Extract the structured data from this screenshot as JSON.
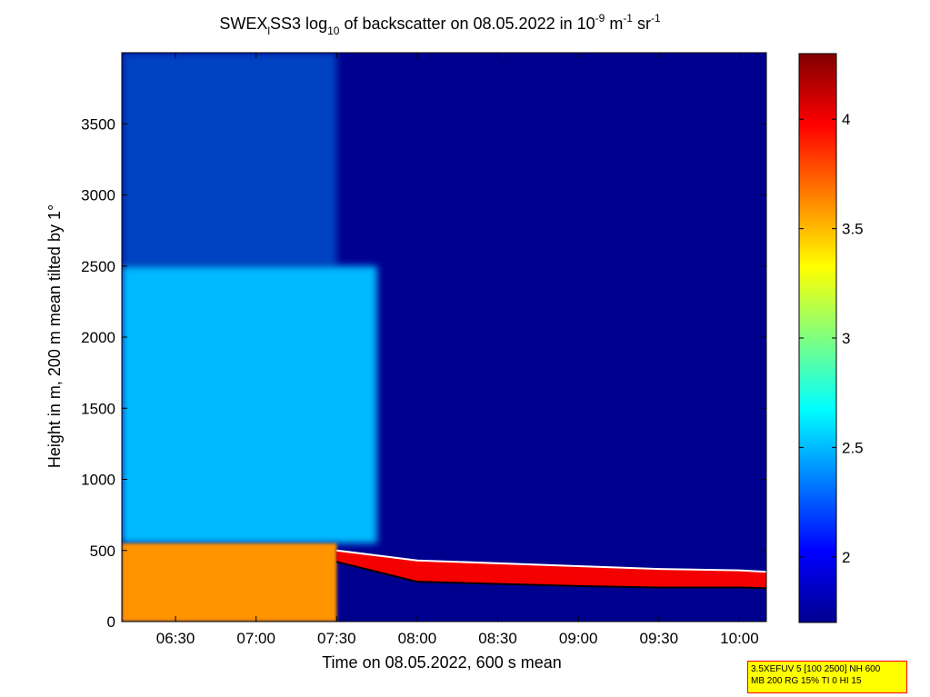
{
  "title": {
    "prefix": "SWEX",
    "sub1": "l",
    "mid": "SS3 log",
    "sub2": "10",
    "middle": " of backscatter on 08.05.2022 in 10",
    "sup1": "-9",
    "unit1": " m",
    "sup2": "-1",
    "unit2": " sr",
    "sup3": "-1"
  },
  "xlabel": "Time on 08.05.2022, 600 s mean",
  "ylabel": "Height in m, 200 m mean tilted by 1°",
  "info_box": {
    "line1": "3.5XEFUV 5 [100 2500] NH 600",
    "line2": "MB 200 RG 15% TI 0 HI 15"
  },
  "colors": {
    "low": "#00008f",
    "mid": "#00ffff",
    "high": "#800000"
  },
  "chart_data": {
    "type": "heatmap",
    "xlim": [
      "06:10",
      "10:10"
    ],
    "ylim": [
      0,
      4000
    ],
    "x_tick_labels": [
      "06:30",
      "07:00",
      "07:30",
      "08:00",
      "08:30",
      "09:00",
      "09:30",
      "10:00"
    ],
    "x_ticks_minutes": [
      390,
      420,
      450,
      480,
      510,
      540,
      570,
      600
    ],
    "y_ticks": [
      0,
      500,
      1000,
      1500,
      2000,
      2500,
      3000,
      3500
    ],
    "colorbar": {
      "colormap": "jet",
      "range": [
        1.7,
        4.3
      ],
      "ticks": [
        2,
        2.5,
        3,
        3.5,
        4
      ]
    },
    "features": {
      "surface_layer": {
        "time_range": [
          "06:10",
          "07:30"
        ],
        "height_range": [
          0,
          550
        ],
        "value": 3.6
      },
      "residual_aerosol": {
        "time_range": [
          "06:10",
          "07:45"
        ],
        "height_range": [
          550,
          2500
        ],
        "value": 2.5
      },
      "sparse_upper_aerosol": {
        "time_range": [
          "06:10",
          "07:30"
        ],
        "height_range": [
          2500,
          4000
        ],
        "value": 2.4
      },
      "cloud_layer_top": [
        [
          450,
          500
        ],
        [
          480,
          430
        ],
        [
          540,
          390
        ],
        [
          570,
          370
        ],
        [
          600,
          360
        ],
        [
          610,
          350
        ]
      ],
      "cloud_layer_bottom": [
        [
          450,
          420
        ],
        [
          480,
          280
        ],
        [
          540,
          250
        ],
        [
          570,
          240
        ],
        [
          600,
          240
        ],
        [
          610,
          235
        ]
      ]
    }
  }
}
